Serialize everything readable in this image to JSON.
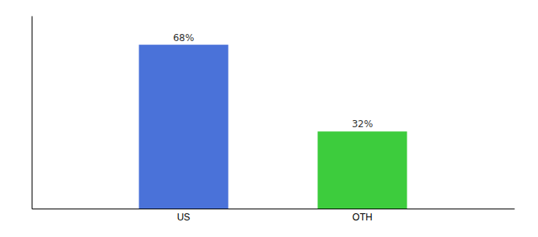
{
  "chart_data": {
    "type": "bar",
    "categories": [
      "US",
      "OTH"
    ],
    "values": [
      68,
      32
    ],
    "colors": [
      "#4a72d9",
      "#3dcc3d"
    ],
    "ylim": [
      0,
      80
    ],
    "data_labels": true,
    "value_labels": [
      "68%",
      "32%"
    ],
    "tick_labels": "x"
  }
}
